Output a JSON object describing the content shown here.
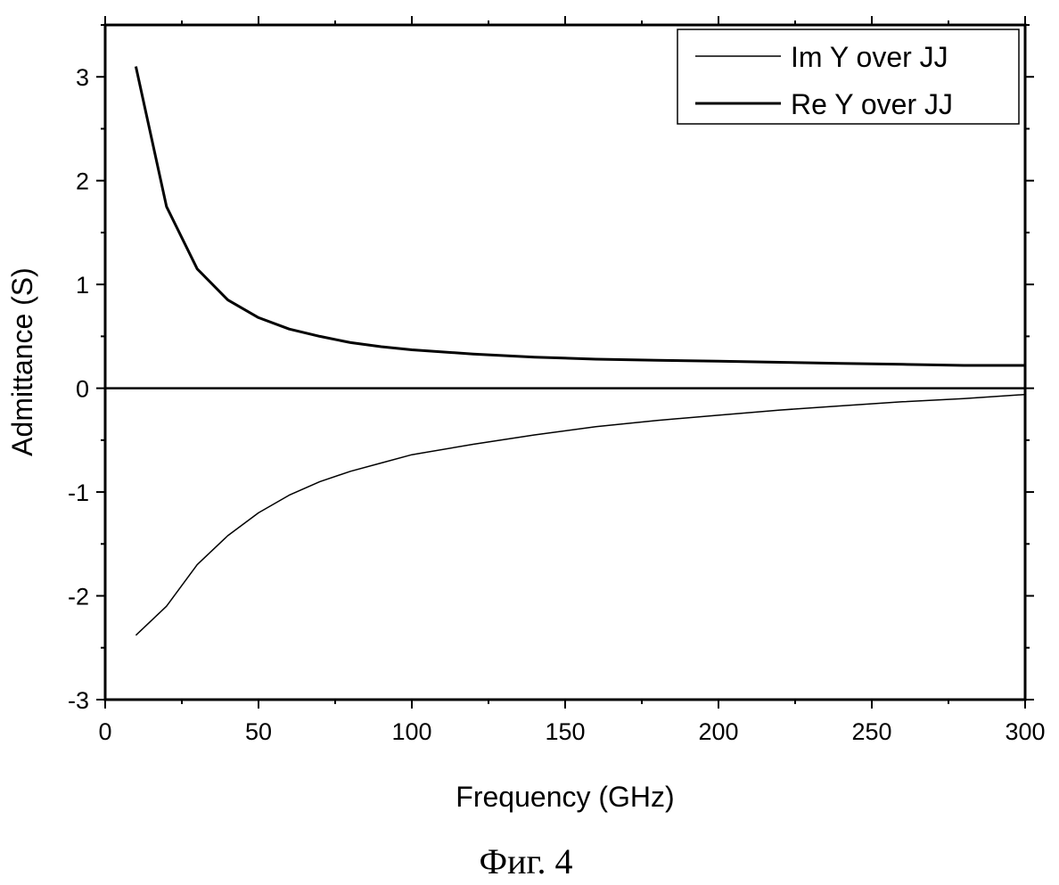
{
  "chart_data": {
    "type": "line",
    "xlabel": "Frequency (GHz)",
    "ylabel": "Admittance (S)",
    "xlim": [
      0,
      300
    ],
    "ylim": [
      -3,
      3.5
    ],
    "xticks": [
      0,
      50,
      100,
      150,
      200,
      250,
      300
    ],
    "yticks": [
      -3,
      -2,
      -1,
      0,
      1,
      2,
      3
    ],
    "grid": false,
    "legend_position": "top-right",
    "series": [
      {
        "name": "Im Y over JJ",
        "color": "#000000",
        "x": [
          10,
          20,
          30,
          40,
          50,
          60,
          70,
          80,
          90,
          100,
          120,
          140,
          160,
          180,
          200,
          220,
          240,
          260,
          280,
          300
        ],
        "y": [
          -2.38,
          -2.1,
          -1.7,
          -1.42,
          -1.2,
          -1.03,
          -0.9,
          -0.8,
          -0.72,
          -0.64,
          -0.54,
          -0.45,
          -0.37,
          -0.31,
          -0.26,
          -0.21,
          -0.17,
          -0.13,
          -0.1,
          -0.06
        ]
      },
      {
        "name": "Re Y over JJ",
        "color": "#000000",
        "x": [
          10,
          20,
          30,
          40,
          50,
          60,
          70,
          80,
          90,
          100,
          120,
          140,
          160,
          180,
          200,
          220,
          240,
          260,
          280,
          300
        ],
        "y": [
          3.1,
          1.75,
          1.15,
          0.85,
          0.68,
          0.57,
          0.5,
          0.44,
          0.4,
          0.37,
          0.33,
          0.3,
          0.28,
          0.27,
          0.26,
          0.25,
          0.24,
          0.23,
          0.22,
          0.22
        ]
      }
    ],
    "zero_line": true
  },
  "caption": "Фиг. 4"
}
